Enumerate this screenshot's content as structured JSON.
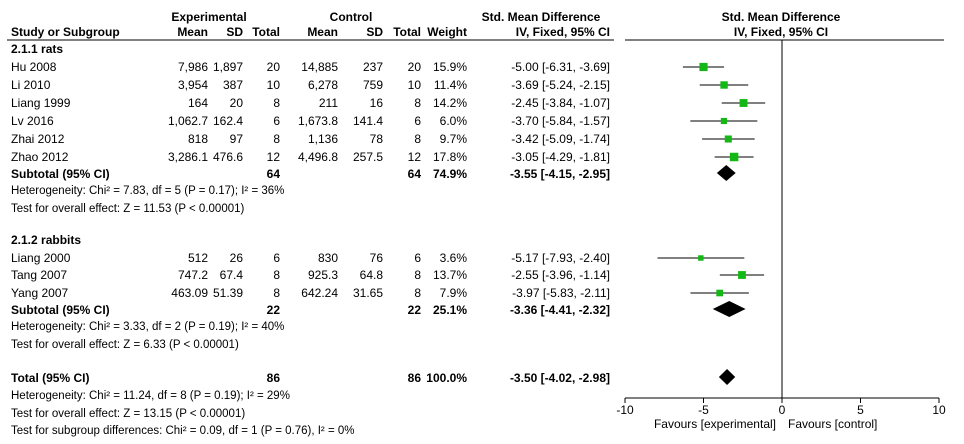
{
  "header": {
    "group_exp": "Experimental",
    "group_ctl": "Control",
    "smd_title": "Std. Mean Difference",
    "smd_sub": "IV, Fixed, 95% CI",
    "plot_title": "Std. Mean Difference",
    "plot_sub": "IV, Fixed, 95% CI",
    "col_study": "Study or Subgroup",
    "col_mean_e": "Mean",
    "col_sd_e": "SD",
    "col_total_e": "Total",
    "col_mean_c": "Mean",
    "col_sd_c": "SD",
    "col_total_c": "Total",
    "col_weight": "Weight"
  },
  "groups": [
    {
      "title": "2.1.1 rats",
      "studies": [
        {
          "name": "Hu 2008",
          "mean_e": "7,986",
          "sd_e": "1,897",
          "n_e": "20",
          "mean_c": "14,885",
          "sd_c": "237",
          "n_c": "20",
          "weight": "15.9%",
          "ci_text": "-5.00 [-6.31, -3.69]",
          "smd": -5.0,
          "lo": -6.31,
          "hi": -3.69,
          "w": 15.9
        },
        {
          "name": "Li 2010",
          "mean_e": "3,954",
          "sd_e": "387",
          "n_e": "10",
          "mean_c": "6,278",
          "sd_c": "759",
          "n_c": "10",
          "weight": "11.4%",
          "ci_text": "-3.69 [-5.24, -2.15]",
          "smd": -3.69,
          "lo": -5.24,
          "hi": -2.15,
          "w": 11.4
        },
        {
          "name": "Liang 1999",
          "mean_e": "164",
          "sd_e": "20",
          "n_e": "8",
          "mean_c": "211",
          "sd_c": "16",
          "n_c": "8",
          "weight": "14.2%",
          "ci_text": "-2.45 [-3.84, -1.07]",
          "smd": -2.45,
          "lo": -3.84,
          "hi": -1.07,
          "w": 14.2
        },
        {
          "name": "Lv 2016",
          "mean_e": "1,062.7",
          "sd_e": "162.4",
          "n_e": "6",
          "mean_c": "1,673.8",
          "sd_c": "141.4",
          "n_c": "6",
          "weight": "6.0%",
          "ci_text": "-3.70 [-5.84, -1.57]",
          "smd": -3.7,
          "lo": -5.84,
          "hi": -1.57,
          "w": 6.0
        },
        {
          "name": "Zhai 2012",
          "mean_e": "818",
          "sd_e": "97",
          "n_e": "8",
          "mean_c": "1,136",
          "sd_c": "78",
          "n_c": "8",
          "weight": "9.7%",
          "ci_text": "-3.42 [-5.09, -1.74]",
          "smd": -3.42,
          "lo": -5.09,
          "hi": -1.74,
          "w": 9.7
        },
        {
          "name": "Zhao 2012",
          "mean_e": "3,286.1",
          "sd_e": "476.6",
          "n_e": "12",
          "mean_c": "4,496.8",
          "sd_c": "257.5",
          "n_c": "12",
          "weight": "17.8%",
          "ci_text": "-3.05 [-4.29, -1.81]",
          "smd": -3.05,
          "lo": -4.29,
          "hi": -1.81,
          "w": 17.8
        }
      ],
      "subtotal": {
        "label": "Subtotal (95% CI)",
        "n_e": "64",
        "n_c": "64",
        "weight": "74.9%",
        "ci_text": "-3.55 [-4.15, -2.95]",
        "smd": -3.55,
        "lo": -4.15,
        "hi": -2.95
      },
      "heterogeneity": "Heterogeneity: Chi² = 7.83, df = 5 (P = 0.17); I² = 36%",
      "overall": "Test for overall effect: Z = 11.53 (P < 0.00001)"
    },
    {
      "title": "2.1.2 rabbits",
      "studies": [
        {
          "name": "Liang 2000",
          "mean_e": "512",
          "sd_e": "26",
          "n_e": "6",
          "mean_c": "830",
          "sd_c": "76",
          "n_c": "6",
          "weight": "3.6%",
          "ci_text": "-5.17 [-7.93, -2.40]",
          "smd": -5.17,
          "lo": -7.93,
          "hi": -2.4,
          "w": 3.6
        },
        {
          "name": "Tang 2007",
          "mean_e": "747.2",
          "sd_e": "67.4",
          "n_e": "8",
          "mean_c": "925.3",
          "sd_c": "64.8",
          "n_c": "8",
          "weight": "13.7%",
          "ci_text": "-2.55 [-3.96, -1.14]",
          "smd": -2.55,
          "lo": -3.96,
          "hi": -1.14,
          "w": 13.7
        },
        {
          "name": "Yang 2007",
          "mean_e": "463.09",
          "sd_e": "51.39",
          "n_e": "8",
          "mean_c": "642.24",
          "sd_c": "31.65",
          "n_c": "8",
          "weight": "7.9%",
          "ci_text": "-3.97 [-5.83, -2.11]",
          "smd": -3.97,
          "lo": -5.83,
          "hi": -2.11,
          "w": 7.9
        }
      ],
      "subtotal": {
        "label": "Subtotal (95% CI)",
        "n_e": "22",
        "n_c": "22",
        "weight": "25.1%",
        "ci_text": "-3.36 [-4.41, -2.32]",
        "smd": -3.36,
        "lo": -4.41,
        "hi": -2.32
      },
      "heterogeneity": "Heterogeneity: Chi² = 3.33, df = 2 (P = 0.19); I² = 40%",
      "overall": "Test for overall effect: Z = 6.33 (P < 0.00001)"
    }
  ],
  "total": {
    "label": "Total (95% CI)",
    "n_e": "86",
    "n_c": "86",
    "weight": "100.0%",
    "ci_text": "-3.50 [-4.02, -2.98]",
    "smd": -3.5,
    "lo": -4.02,
    "hi": -2.98,
    "heterogeneity": "Heterogeneity: Chi² = 11.24, df = 8 (P = 0.19); I² = 29%",
    "overall": "Test for overall effect: Z = 13.15 (P < 0.00001)",
    "subgroup": "Test for subgroup differences: Chi² = 0.09, df = 1 (P = 0.76), I² = 0%"
  },
  "axis": {
    "ticks": [
      -10,
      -5,
      0,
      5,
      10
    ],
    "tick_labels": [
      "-10",
      "-5",
      "0",
      "5",
      "10"
    ],
    "favours_left": "Favours [experimental]",
    "favours_right": "Favours [control]"
  },
  "colors": {
    "marker": "#14b814",
    "line": "#000000",
    "diamond": "#000000"
  },
  "chart_data": {
    "type": "forest",
    "title": "Std. Mean Difference IV, Fixed, 95% CI",
    "xlim": [
      -10,
      10
    ],
    "categories": [
      "Hu 2008",
      "Li 2010",
      "Liang 1999",
      "Lv 2016",
      "Zhai 2012",
      "Zhao 2012",
      "Subtotal (95% CI)",
      "Liang 2000",
      "Tang 2007",
      "Yang 2007",
      "Subtotal (95% CI)",
      "Total (95% CI)"
    ],
    "smd": [
      -5.0,
      -3.69,
      -2.45,
      -3.7,
      -3.42,
      -3.05,
      -3.55,
      -5.17,
      -2.55,
      -3.97,
      -3.36,
      -3.5
    ],
    "ci_low": [
      -6.31,
      -5.24,
      -3.84,
      -5.84,
      -5.09,
      -4.29,
      -4.15,
      -7.93,
      -3.96,
      -5.83,
      -4.41,
      -4.02
    ],
    "ci_high": [
      -3.69,
      -2.15,
      -1.07,
      -1.57,
      -1.74,
      -1.81,
      -2.95,
      -2.4,
      -1.14,
      -2.11,
      -2.32,
      -2.98
    ],
    "weights": [
      15.9,
      11.4,
      14.2,
      6.0,
      9.7,
      17.8,
      74.9,
      3.6,
      13.7,
      7.9,
      25.1,
      100.0
    ],
    "xlabel_left": "Favours [experimental]",
    "xlabel_right": "Favours [control]"
  }
}
